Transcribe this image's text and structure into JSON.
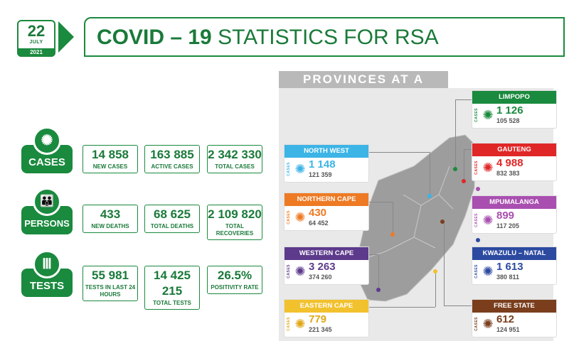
{
  "date": {
    "day": "22",
    "month": "JULY",
    "year": "2021"
  },
  "title": {
    "bold": "COVID – 19",
    "rest": " STATISTICS FOR RSA"
  },
  "categories": [
    {
      "label": "CASES",
      "icon": "virus-icon",
      "glyph": "✺",
      "stats": [
        {
          "value": "14 858",
          "label": "NEW CASES"
        },
        {
          "value": "163 885",
          "label": "ACTIVE CASES"
        },
        {
          "value": "2 342 330",
          "label": "TOTAL CASES"
        }
      ]
    },
    {
      "label": "PERSONS",
      "icon": "people-icon",
      "glyph": "👪",
      "stats": [
        {
          "value": "433",
          "label": "NEW DEATHS"
        },
        {
          "value": "68 625",
          "label": "TOTAL DEATHS"
        },
        {
          "value": "2 109 820",
          "label": "TOTAL RECOVERIES"
        }
      ]
    },
    {
      "label": "TESTS",
      "icon": "test-tubes-icon",
      "glyph": "Ⅲ",
      "stats": [
        {
          "value": "55 981",
          "label": "TESTS IN LAST 24 HOURS"
        },
        {
          "value": "14 425 215",
          "label": "TOTAL TESTS"
        },
        {
          "value": "26.5%",
          "label": "POSITIVITY RATE"
        }
      ]
    }
  ],
  "provinces_heading": "PROVINCES AT A GLANCE",
  "cases_label": "CASES",
  "provinces": [
    {
      "name": "LIMPOPO",
      "new": "1 126",
      "total": "105 528",
      "color": "#1a8a3e"
    },
    {
      "name": "NORTH WEST",
      "new": "1 148",
      "total": "121 359",
      "color": "#3cb4e6"
    },
    {
      "name": "GAUTENG",
      "new": "4 988",
      "total": "832 383",
      "color": "#e02727"
    },
    {
      "name": "NORTHERN CAPE",
      "new": "430",
      "total": "64 452",
      "color": "#ee7a24"
    },
    {
      "name": "MPUMALANGA",
      "new": "899",
      "total": "117 205",
      "color": "#a94fb0"
    },
    {
      "name": "WESTERN CAPE",
      "new": "3 263",
      "total": "374 260",
      "color": "#5d3a8c"
    },
    {
      "name": "KWAZULU – NATAL",
      "new": "1 613",
      "total": "380 811",
      "color": "#2c4aa0"
    },
    {
      "name": "EASTERN CAPE",
      "new": "779",
      "total": "221 345",
      "color": "#f2c12e"
    },
    {
      "name": "FREE STATE",
      "new": "612",
      "total": "124 951",
      "color": "#7a3e1d"
    }
  ]
}
